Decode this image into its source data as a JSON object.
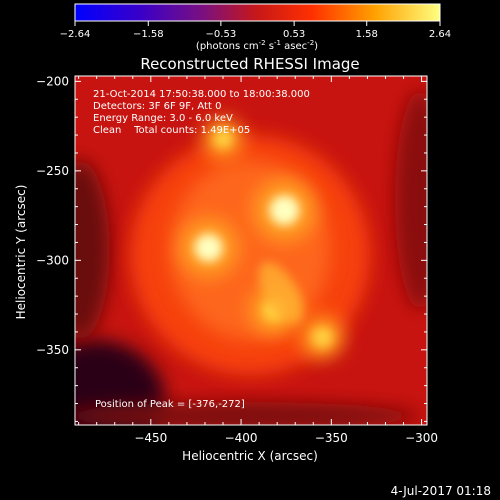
{
  "colorbar": {
    "ticks": [
      "-2.64",
      "-1.58",
      "-0.53",
      "0.53",
      "1.58",
      "2.64"
    ],
    "unit_label_main": "(photons cm",
    "unit_label_exp1": "-2",
    "unit_label_mid": " s",
    "unit_label_exp2": "-1",
    "unit_label_mid2": " asec",
    "unit_label_exp3": "-2",
    "unit_label_end": ")",
    "range": [
      -2.64,
      2.64
    ]
  },
  "chart_data": {
    "type": "heatmap",
    "title": "Reconstructed RHESSI Image",
    "xlabel": "Heliocentric X (arcsec)",
    "ylabel": "Heliocentric Y (arcsec)",
    "xlim": [
      -492,
      -297
    ],
    "ylim": [
      -392,
      -197
    ],
    "x_ticks": [
      -450,
      -400,
      -350,
      -300
    ],
    "y_ticks": [
      -200,
      -250,
      -300,
      -350
    ],
    "x_tick_labels": [
      "−450",
      "−400",
      "−350",
      "−300"
    ],
    "y_tick_labels": [
      "−200",
      "−250",
      "−300",
      "−350"
    ],
    "colormap": "hot-red-yellow",
    "sources": [
      {
        "x": -376,
        "y": -272,
        "peak": 2.64
      },
      {
        "x": -418,
        "y": -293,
        "peak": 2.45
      },
      {
        "x": -382,
        "y": -328,
        "peak": 1.9
      },
      {
        "x": -355,
        "y": -343,
        "peak": 1.6
      },
      {
        "x": -410,
        "y": -232,
        "peak": 1.5
      }
    ],
    "peak_position": [
      -376,
      -272
    ],
    "annotations": [
      "21-Oct-2014 17:50:38.000 to 18:00:38.000",
      "Detectors: 3F 6F 9F, Att 0",
      "Energy Range: 3.0 - 6.0 keV",
      "Clean    Total counts: 1.49E+05",
      "Position of Peak = [-376,-272]"
    ]
  },
  "footer": {
    "date": "4-Jul-2017 01:18"
  }
}
